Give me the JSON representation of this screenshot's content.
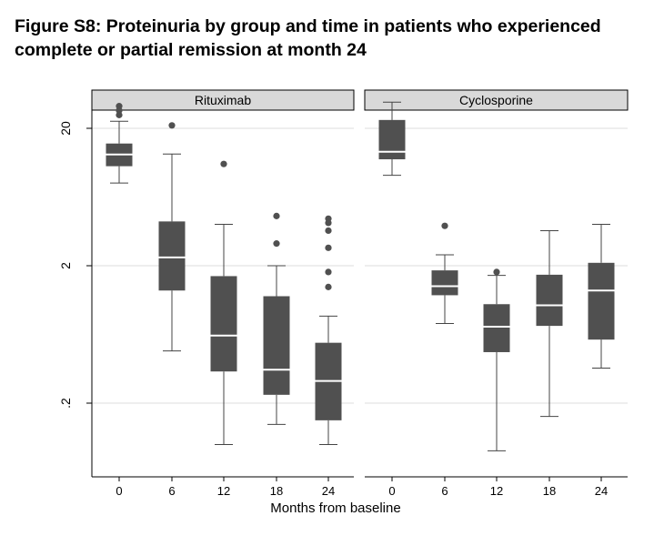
{
  "title_line1": "Figure S8: Proteinuria by group and time in patients who experienced",
  "title_line2": "complete or partial remission at month 24",
  "colors": {
    "box": "#505050",
    "median": "#ffffff",
    "strip": "#d9d9d9",
    "grid": "#dcdcdc"
  },
  "chart_data": {
    "type": "boxplot",
    "y_scale": "log10",
    "ylim": [
      0.06,
      30
    ],
    "y_ticks": [
      0.2,
      2,
      20
    ],
    "y_tick_labels": [
      ".2",
      "2",
      "20"
    ],
    "xlabel": "Months from baseline",
    "ylabel": "",
    "categories": [
      "0",
      "6",
      "12",
      "18",
      "24"
    ],
    "panels": [
      {
        "name": "Rituximab",
        "boxes": [
          {
            "month": "0",
            "whisker_low": 8.0,
            "q1": 10.6,
            "median": 12.9,
            "q3": 15.5,
            "whisker_high": 22.5,
            "outliers": [
              25.0,
              27.0,
              29.0
            ]
          },
          {
            "month": "6",
            "whisker_low": 0.48,
            "q1": 1.32,
            "median": 2.3,
            "q3": 4.2,
            "whisker_high": 13.0,
            "outliers": [
              21.0
            ]
          },
          {
            "month": "12",
            "whisker_low": 0.1,
            "q1": 0.34,
            "median": 0.62,
            "q3": 1.68,
            "whisker_high": 4.0,
            "outliers": [
              11.0
            ]
          },
          {
            "month": "18",
            "whisker_low": 0.14,
            "q1": 0.23,
            "median": 0.35,
            "q3": 1.2,
            "whisker_high": 2.0,
            "outliers": [
              2.9,
              4.6
            ]
          },
          {
            "month": "24",
            "whisker_low": 0.1,
            "q1": 0.15,
            "median": 0.29,
            "q3": 0.55,
            "whisker_high": 0.86,
            "outliers": [
              1.4,
              1.8,
              2.7,
              3.6,
              4.1,
              4.4
            ]
          }
        ]
      },
      {
        "name": "Cyclosporine",
        "boxes": [
          {
            "month": "0",
            "whisker_low": 9.1,
            "q1": 11.9,
            "median": 13.5,
            "q3": 23.0,
            "whisker_high": 31.0,
            "outliers": []
          },
          {
            "month": "6",
            "whisker_low": 0.76,
            "q1": 1.22,
            "median": 1.42,
            "q3": 1.85,
            "whisker_high": 2.4,
            "outliers": [
              3.9
            ]
          },
          {
            "month": "12",
            "whisker_low": 0.09,
            "q1": 0.47,
            "median": 0.72,
            "q3": 1.05,
            "whisker_high": 1.7,
            "outliers": [
              1.8
            ]
          },
          {
            "month": "18",
            "whisker_low": 0.16,
            "q1": 0.73,
            "median": 1.03,
            "q3": 1.72,
            "whisker_high": 3.6,
            "outliers": []
          },
          {
            "month": "24",
            "whisker_low": 0.36,
            "q1": 0.58,
            "median": 1.32,
            "q3": 2.1,
            "whisker_high": 4.0,
            "outliers": []
          }
        ]
      }
    ]
  }
}
